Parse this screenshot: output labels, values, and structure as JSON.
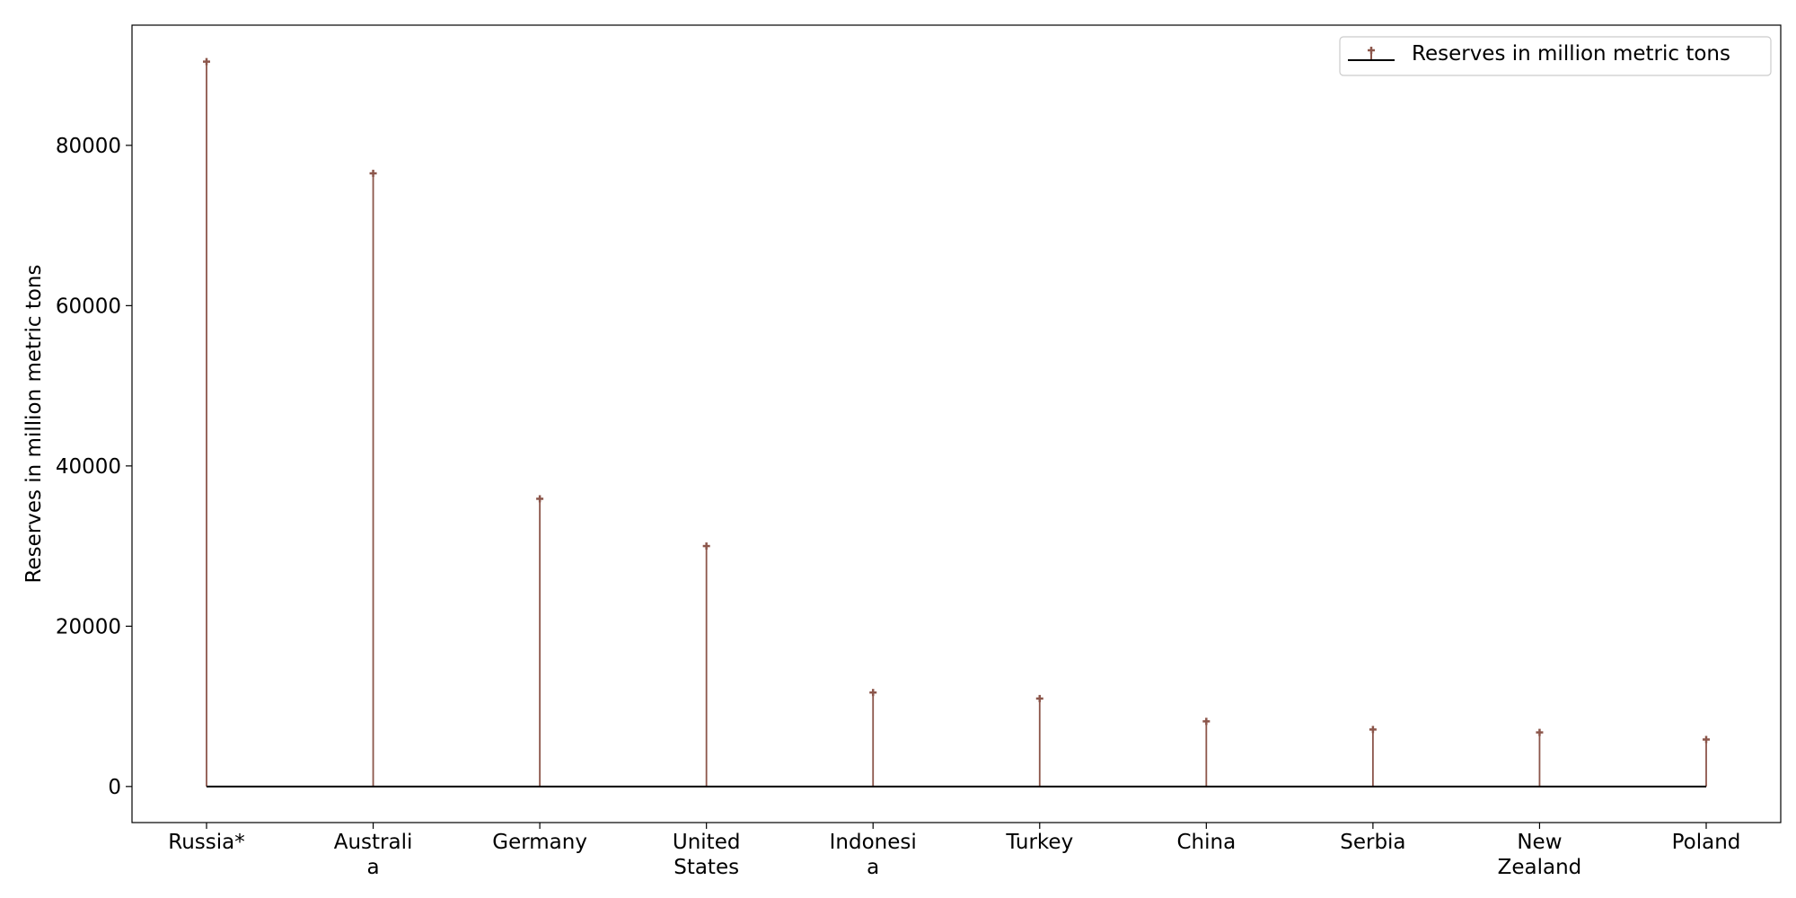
{
  "chart_data": {
    "type": "stem",
    "categories": [
      "Russia*",
      "Australia",
      "Germany",
      "United States",
      "Indonesia",
      "Turkey",
      "China",
      "Serbia",
      "New Zealand",
      "Poland"
    ],
    "category_tick_lines": [
      [
        "Russia*"
      ],
      [
        "Australi",
        "a"
      ],
      [
        "Germany"
      ],
      [
        "United",
        "States"
      ],
      [
        "Indonesi",
        "a"
      ],
      [
        "Turkey"
      ],
      [
        "China"
      ],
      [
        "Serbia"
      ],
      [
        "New",
        "Zealand"
      ],
      [
        "Poland"
      ]
    ],
    "series": [
      {
        "name": "Reserves in million metric tons",
        "values": [
          90447,
          76508,
          35900,
          30003,
          11728,
          10975,
          8128,
          7112,
          6750,
          5865
        ]
      }
    ],
    "ylabel": "Reserves in million metric tons",
    "xlabel": "",
    "ylim": [
      -4500,
      95000
    ],
    "yticks": [
      0,
      20000,
      40000,
      60000,
      80000
    ],
    "ytick_labels": [
      "0",
      "20000",
      "40000",
      "60000",
      "80000"
    ],
    "grid": false,
    "legend_position": "top-right",
    "colors": {
      "stem": "#8c564b",
      "baseline": "#000000"
    }
  }
}
